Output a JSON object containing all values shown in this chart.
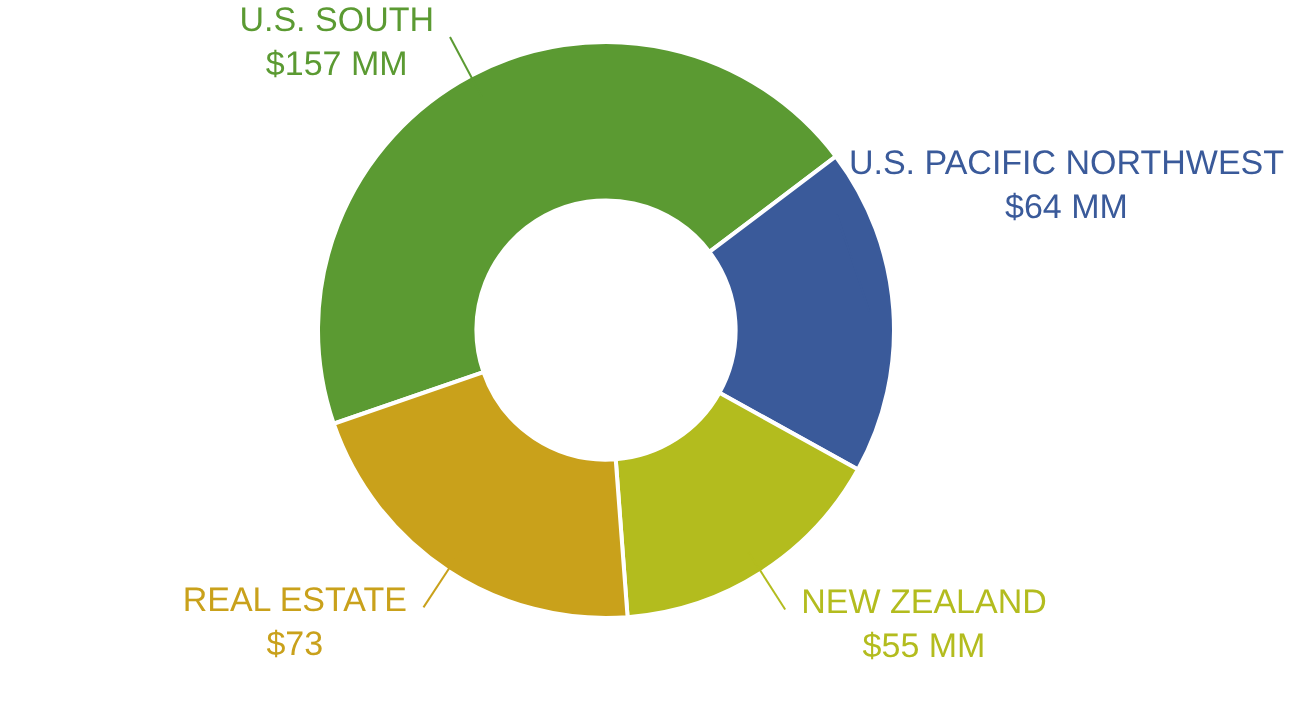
{
  "chart_data": {
    "type": "donut",
    "categories": [
      "U.S. SOUTH",
      "U.S. PACIFIC NORTHWEST",
      "NEW ZEALAND",
      "REAL ESTATE"
    ],
    "values": [
      157,
      64,
      55,
      73
    ],
    "value_labels": [
      "$157 MM",
      "$64 MM",
      "$55 MM",
      "$73"
    ],
    "colors": [
      "#5b9a32",
      "#3a5a9a",
      "#b3bc1e",
      "#c9a11b"
    ],
    "legend": false
  }
}
